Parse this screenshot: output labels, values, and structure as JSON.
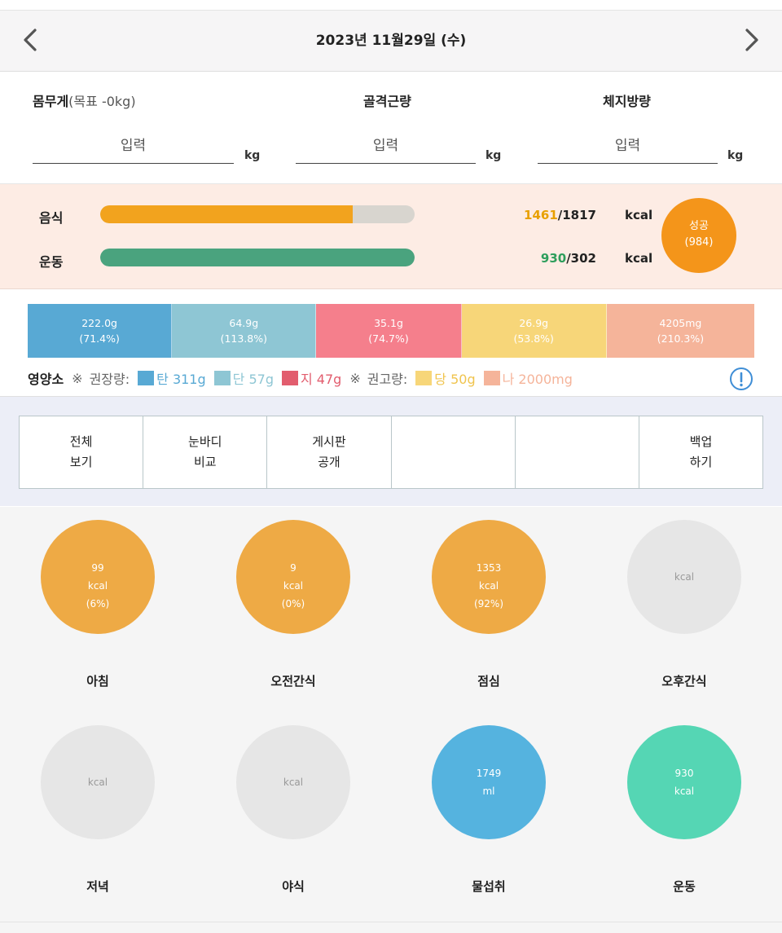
{
  "header": {
    "date": "2023년 11월29일 (수)",
    "prev_icon": "chevron-left-icon",
    "next_icon": "chevron-right-icon"
  },
  "body": {
    "weight_label": "몸무게",
    "weight_goal": "(목표 -0kg)",
    "muscle_label": "골격근량",
    "fat_label": "체지방량",
    "input_placeholder": "입력",
    "unit": "kg"
  },
  "calories": {
    "food_label": "음식",
    "exercise_label": "운동",
    "food_current": "1461",
    "food_target": "/1817",
    "exercise_current": "930",
    "exercise_target": "/302",
    "unit": "kcal",
    "food_progress": 0.804,
    "exercise_progress": 1.0,
    "status_label": "성공",
    "status_value": "(984)",
    "colors": {
      "food_fill": "#f2a31e",
      "exercise_fill": "#4aa37e",
      "track": "#d8d5cf",
      "status": "#f4951a",
      "food_num": "#e8a000",
      "exercise_num": "#2e9e5c"
    }
  },
  "nutrients": {
    "boxes": [
      {
        "value": "222.0g",
        "pct": "(71.4%)",
        "color": "#58a9d4"
      },
      {
        "value": "64.9g",
        "pct": "(113.8%)",
        "color": "#8ec6d4"
      },
      {
        "value": "35.1g",
        "pct": "(74.7%)",
        "color": "#f57f8c"
      },
      {
        "value": "26.9g",
        "pct": "(53.8%)",
        "color": "#f7d679"
      },
      {
        "value": "4205mg",
        "pct": "(210.3%)",
        "color": "#f5b49a"
      }
    ],
    "legend_title": "영양소",
    "mark": "※",
    "recommended_label": "권장량:",
    "limit_label": "권고량:",
    "items": [
      {
        "text": "탄 311g",
        "color": "#58a9d4"
      },
      {
        "text": "단 57g",
        "color": "#8ec6d4"
      },
      {
        "text": "지 47g",
        "color": "#e25d6e"
      },
      {
        "text": "당 50g",
        "color": "#f0c44e"
      },
      {
        "text": "나 2000mg",
        "color": "#f5b49a"
      }
    ],
    "info_icon": "info-circle-icon"
  },
  "actions": {
    "buttons": [
      {
        "line1": "전체",
        "line2": "보기"
      },
      {
        "line1": "눈바디",
        "line2": "비교"
      },
      {
        "line1": "게시판",
        "line2": "공개"
      },
      {
        "line1": "",
        "line2": ""
      },
      {
        "line1": "",
        "line2": ""
      },
      {
        "line1": "백업",
        "line2": "하기"
      }
    ]
  },
  "meals": [
    {
      "label": "아침",
      "line1": "99",
      "line2": "kcal",
      "line3": "(6%)",
      "color": "#eeaa45"
    },
    {
      "label": "오전간식",
      "line1": "9",
      "line2": "kcal",
      "line3": "(0%)",
      "color": "#eeaa45"
    },
    {
      "label": "점심",
      "line1": "1353",
      "line2": "kcal",
      "line3": "(92%)",
      "color": "#eeaa45"
    },
    {
      "label": "오후간식",
      "line1": "",
      "line2": "kcal",
      "line3": "",
      "color": "#e6e6e6"
    },
    {
      "label": "저녁",
      "line1": "",
      "line2": "kcal",
      "line3": "",
      "color": "#e6e6e6"
    },
    {
      "label": "야식",
      "line1": "",
      "line2": "kcal",
      "line3": "",
      "color": "#e6e6e6"
    },
    {
      "label": "물섭취",
      "line1": "1749",
      "line2": "ml",
      "line3": "",
      "color": "#55b3df"
    },
    {
      "label": "운동",
      "line1": "930",
      "line2": "kcal",
      "line3": "",
      "color": "#55d6b4"
    }
  ]
}
